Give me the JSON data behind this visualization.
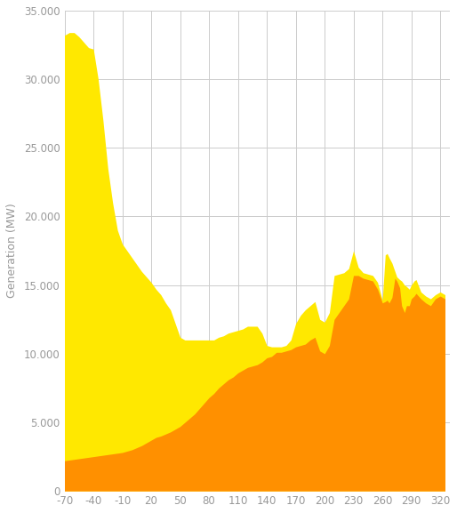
{
  "x_ticks": [
    -70,
    -40,
    -10,
    20,
    50,
    80,
    110,
    140,
    170,
    200,
    230,
    260,
    290,
    320
  ],
  "x_min": -70,
  "x_max": 330,
  "y_min": 0,
  "y_max": 35000,
  "y_ticks": [
    0,
    5000,
    10000,
    15000,
    20000,
    25000,
    30000,
    35000
  ],
  "ylabel": "Generation (MW)",
  "solar_color": "#FFE800",
  "gas_color": "#FF9000",
  "background_color": "#ffffff",
  "grid_color": "#cccccc",
  "x_data": [
    -70,
    -65,
    -60,
    -55,
    -50,
    -45,
    -40,
    -35,
    -30,
    -25,
    -20,
    -15,
    -10,
    -5,
    0,
    5,
    10,
    15,
    20,
    25,
    30,
    35,
    40,
    45,
    50,
    55,
    60,
    65,
    70,
    75,
    80,
    85,
    90,
    95,
    100,
    105,
    110,
    115,
    120,
    125,
    130,
    135,
    140,
    145,
    150,
    155,
    160,
    165,
    170,
    175,
    180,
    185,
    190,
    195,
    200,
    205,
    210,
    215,
    220,
    225,
    230,
    235,
    240,
    245,
    250,
    255,
    260,
    263,
    265,
    267,
    270,
    273,
    275,
    278,
    280,
    283,
    285,
    288,
    290,
    293,
    295,
    300,
    305,
    310,
    315,
    320,
    325
  ],
  "solar_total": [
    33200,
    33400,
    33400,
    33100,
    32700,
    32300,
    32200,
    30000,
    27000,
    23500,
    21000,
    19000,
    18000,
    17500,
    17000,
    16500,
    16000,
    15600,
    15200,
    14700,
    14300,
    13700,
    13200,
    12200,
    11200,
    11000,
    11000,
    11000,
    11000,
    11000,
    11000,
    11000,
    11200,
    11300,
    11500,
    11600,
    11700,
    11800,
    12000,
    12000,
    12000,
    11500,
    10600,
    10500,
    10500,
    10500,
    10600,
    11000,
    12200,
    12800,
    13200,
    13500,
    13800,
    12500,
    12300,
    13000,
    15700,
    15800,
    15900,
    16200,
    17500,
    16300,
    15900,
    15800,
    15700,
    15200,
    13900,
    17200,
    17300,
    17000,
    16600,
    16000,
    15600,
    15400,
    15300,
    15000,
    14900,
    14700,
    15000,
    15300,
    15400,
    14500,
    14200,
    14000,
    14300,
    14500,
    14300
  ],
  "gas_total": [
    2200,
    2250,
    2300,
    2350,
    2400,
    2450,
    2500,
    2550,
    2600,
    2650,
    2700,
    2750,
    2800,
    2900,
    3000,
    3150,
    3300,
    3500,
    3700,
    3900,
    4000,
    4150,
    4300,
    4500,
    4700,
    5000,
    5300,
    5600,
    6000,
    6400,
    6800,
    7100,
    7500,
    7800,
    8100,
    8300,
    8600,
    8800,
    9000,
    9100,
    9200,
    9400,
    9700,
    9800,
    10100,
    10100,
    10200,
    10300,
    10500,
    10600,
    10700,
    11000,
    11200,
    10200,
    10000,
    10600,
    12500,
    13000,
    13500,
    14000,
    15700,
    15700,
    15500,
    15400,
    15300,
    14700,
    13700,
    13800,
    13900,
    13700,
    14100,
    15500,
    15300,
    14800,
    13500,
    13000,
    13500,
    13500,
    14000,
    14200,
    14400,
    14000,
    13700,
    13500,
    14000,
    14200,
    14000
  ]
}
